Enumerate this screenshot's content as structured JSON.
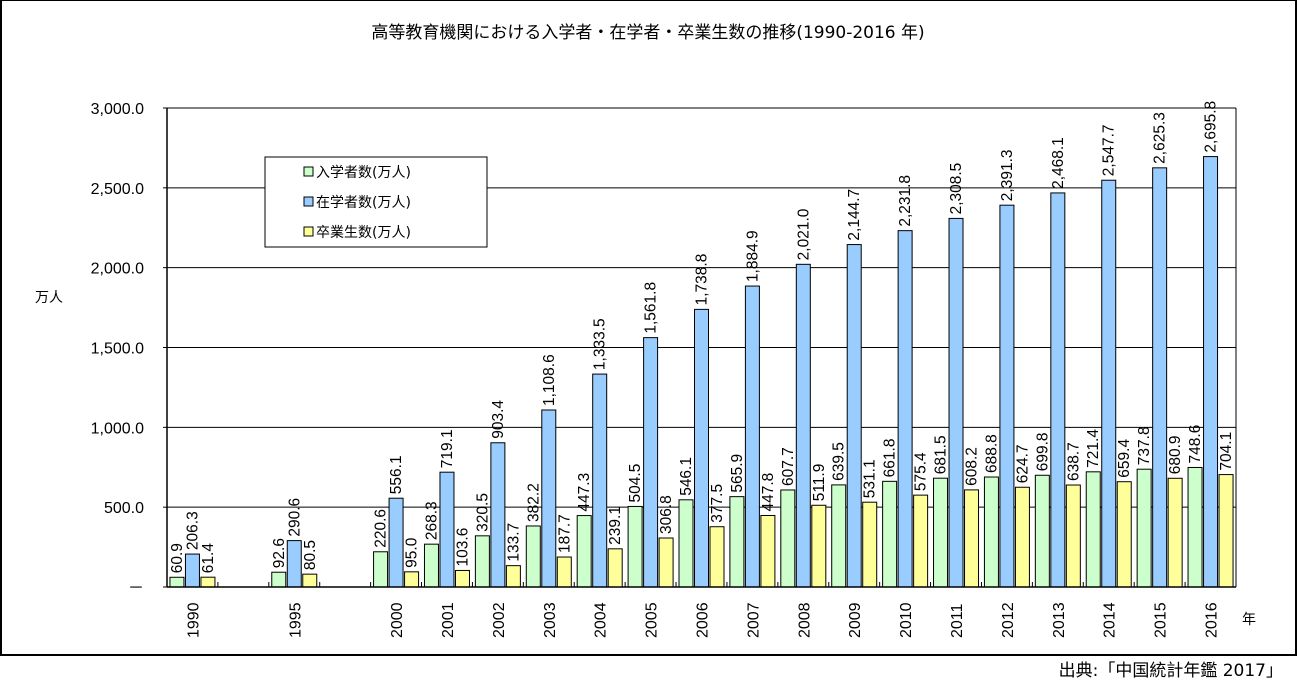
{
  "chart_data": {
    "type": "bar",
    "title": "高等教育機関における入学者・在学者・卒業生数の推移(1990-2016 年)",
    "ylabel": "万人",
    "xlabel": "年",
    "ylim": [
      0,
      3000
    ],
    "yticks": [
      0,
      500,
      1000,
      1500,
      2000,
      2500,
      3000
    ],
    "ytick_labels": [
      "－",
      "500.0",
      "1,000.0",
      "1,500.0",
      "2,000.0",
      "2,500.0",
      "3,000.0"
    ],
    "grid": true,
    "legend_position": "upper-left",
    "categories": [
      "1990",
      "",
      "1995",
      "",
      "2000",
      "2001",
      "2002",
      "2003",
      "2004",
      "2005",
      "2006",
      "2007",
      "2008",
      "2009",
      "2010",
      "2011",
      "2012",
      "2013",
      "2014",
      "2015",
      "2016"
    ],
    "series": [
      {
        "name": "入学者数(万人)",
        "color": "#ccffcc",
        "values": [
          60.9,
          null,
          92.6,
          null,
          220.6,
          268.3,
          320.5,
          382.2,
          447.3,
          504.5,
          546.1,
          565.9,
          607.7,
          639.5,
          661.8,
          681.5,
          688.8,
          699.8,
          721.4,
          737.8,
          748.6
        ],
        "labels": [
          "60.9",
          "",
          "92.6",
          "",
          "220.6",
          "268.3",
          "320.5",
          "382.2",
          "447.3",
          "504.5",
          "546.1",
          "565.9",
          "607.7",
          "639.5",
          "661.8",
          "681.5",
          "688.8",
          "699.8",
          "721.4",
          "737.8",
          "748.6"
        ]
      },
      {
        "name": "在学者数(万人)",
        "color": "#99ccff",
        "values": [
          206.3,
          null,
          290.6,
          null,
          556.1,
          719.1,
          903.4,
          1108.6,
          1333.5,
          1561.8,
          1738.8,
          1884.9,
          2021.0,
          2144.7,
          2231.8,
          2308.5,
          2391.3,
          2468.1,
          2547.7,
          2625.3,
          2695.8
        ],
        "labels": [
          "206.3",
          "",
          "290.6",
          "",
          "556.1",
          "719.1",
          "903.4",
          "1,108.6",
          "1,333.5",
          "1,561.8",
          "1,738.8",
          "1,884.9",
          "2,021.0",
          "2,144.7",
          "2,231.8",
          "2,308.5",
          "2,391.3",
          "2,468.1",
          "2,547.7",
          "2,625.3",
          "2,695.8"
        ]
      },
      {
        "name": "卒業生数(万人)",
        "color": "#ffff99",
        "values": [
          61.4,
          null,
          80.5,
          null,
          95.0,
          103.6,
          133.7,
          187.7,
          239.1,
          306.8,
          377.5,
          447.8,
          511.9,
          531.1,
          575.4,
          608.2,
          624.7,
          638.7,
          659.4,
          680.9,
          704.1
        ],
        "labels": [
          "61.4",
          "",
          "80.5",
          "",
          "95.0",
          "103.6",
          "133.7",
          "187.7",
          "239.1",
          "306.8",
          "377.5",
          "447.8",
          "511.9",
          "531.1",
          "575.4",
          "608.2",
          "624.7",
          "638.7",
          "659.4",
          "680.9",
          "704.1"
        ]
      }
    ]
  },
  "source": "出典:「中国統計年鑑 2017」"
}
